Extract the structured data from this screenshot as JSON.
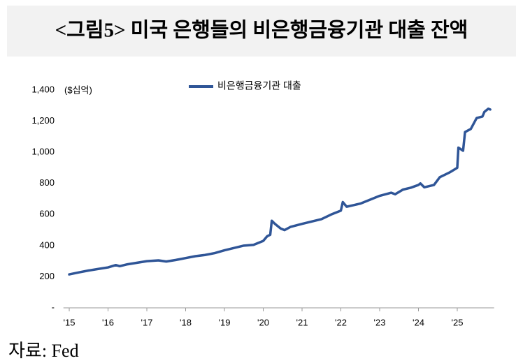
{
  "chart_data": {
    "type": "line",
    "title": "<그림5> 미국 은행들의 비은행금융기관 대출 잔액",
    "unit": "($십억)",
    "source": "자료: Fed",
    "x": [
      2015.0,
      2015.25,
      2015.5,
      2015.75,
      2016.0,
      2016.2,
      2016.3,
      2016.5,
      2016.75,
      2017.0,
      2017.3,
      2017.5,
      2017.75,
      2018.0,
      2018.25,
      2018.5,
      2018.75,
      2019.0,
      2019.25,
      2019.5,
      2019.75,
      2020.0,
      2020.1,
      2020.18,
      2020.22,
      2020.3,
      2020.45,
      2020.55,
      2020.7,
      2021.0,
      2021.25,
      2021.5,
      2021.75,
      2022.0,
      2022.05,
      2022.15,
      2022.5,
      2022.75,
      2023.0,
      2023.3,
      2023.4,
      2023.6,
      2023.8,
      2024.0,
      2024.05,
      2024.15,
      2024.4,
      2024.55,
      2024.8,
      2025.0,
      2025.03,
      2025.15,
      2025.2,
      2025.35,
      2025.5,
      2025.65,
      2025.7,
      2025.8,
      2025.85
    ],
    "series": [
      {
        "name": "비은행금융기관 대출",
        "color": "#2f5597",
        "values": [
          215,
          228,
          240,
          250,
          260,
          275,
          268,
          280,
          290,
          300,
          305,
          298,
          308,
          320,
          332,
          340,
          352,
          370,
          385,
          400,
          405,
          430,
          460,
          470,
          560,
          540,
          510,
          500,
          520,
          540,
          555,
          570,
          600,
          625,
          680,
          650,
          670,
          695,
          720,
          740,
          730,
          760,
          772,
          790,
          800,
          775,
          790,
          840,
          870,
          900,
          1030,
          1010,
          1130,
          1150,
          1220,
          1230,
          1260,
          1280,
          1275
        ]
      }
    ],
    "xlim": [
      2014.85,
      2025.95
    ],
    "xticks": [
      {
        "value": 2015,
        "label": "'15"
      },
      {
        "value": 2016,
        "label": "'16"
      },
      {
        "value": 2017,
        "label": "'17"
      },
      {
        "value": 2018,
        "label": "'18"
      },
      {
        "value": 2019,
        "label": "'19"
      },
      {
        "value": 2020,
        "label": "'20"
      },
      {
        "value": 2021,
        "label": "'21"
      },
      {
        "value": 2022,
        "label": "'22"
      },
      {
        "value": 2023,
        "label": "'23"
      },
      {
        "value": 2024,
        "label": "'24"
      },
      {
        "value": 2025,
        "label": "'25"
      }
    ],
    "ylim": [
      0,
      1400
    ],
    "yticks": [
      {
        "value": 0,
        "label": "-"
      },
      200,
      400,
      600,
      800,
      {
        "value": 1000,
        "label": "1,000"
      },
      {
        "value": 1200,
        "label": "1,200"
      },
      {
        "value": 1400,
        "label": "1,400"
      }
    ],
    "grid": false,
    "legend": "top"
  }
}
